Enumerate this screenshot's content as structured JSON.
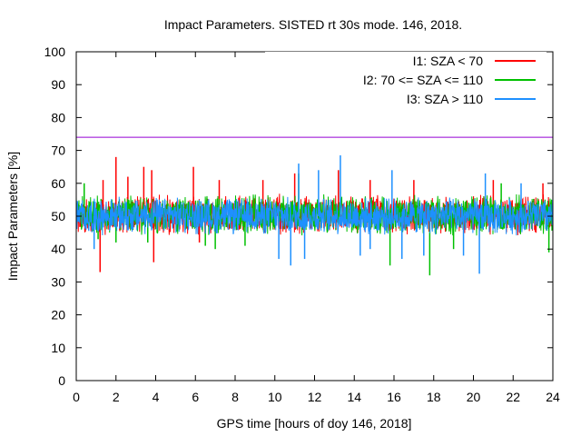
{
  "chart_data": {
    "type": "line",
    "title": "Impact Parameters. SISTED rt 30s mode. 146, 2018.",
    "xlabel": "GPS time [hours of doy 146, 2018]",
    "ylabel": "Impact Parameters [%]",
    "xlim": [
      0,
      24
    ],
    "ylim": [
      0,
      100
    ],
    "x_ticks": [
      0,
      2,
      4,
      6,
      8,
      10,
      12,
      14,
      16,
      18,
      20,
      22,
      24
    ],
    "y_ticks": [
      0,
      10,
      20,
      30,
      40,
      50,
      60,
      70,
      80,
      90,
      100
    ],
    "legend_position": "top-right",
    "reference_line": {
      "y": 74,
      "color": "#9400d3"
    },
    "series": [
      {
        "name": "I1: SZA < 70",
        "color": "#ff0000",
        "mean": 50.5,
        "typical_range": [
          44,
          57
        ],
        "spikes": [
          [
            1.2,
            33
          ],
          [
            1.35,
            61
          ],
          [
            2.0,
            68
          ],
          [
            2.6,
            62
          ],
          [
            3.4,
            65
          ],
          [
            3.6,
            42
          ],
          [
            3.8,
            64
          ],
          [
            3.9,
            36
          ],
          [
            5.9,
            65
          ],
          [
            6.2,
            42
          ],
          [
            7.2,
            61
          ],
          [
            9.4,
            61
          ],
          [
            11.0,
            63
          ],
          [
            13.2,
            64
          ],
          [
            14.8,
            61
          ],
          [
            17.0,
            61
          ],
          [
            21.0,
            61
          ],
          [
            23.5,
            60
          ]
        ]
      },
      {
        "name": "I2: 70 <= SZA <= 110",
        "color": "#00c000",
        "mean": 50.5,
        "typical_range": [
          45,
          58
        ],
        "spikes": [
          [
            0.4,
            60
          ],
          [
            1.1,
            43
          ],
          [
            2.0,
            42
          ],
          [
            3.6,
            42
          ],
          [
            6.5,
            41
          ],
          [
            7.0,
            40
          ],
          [
            8.5,
            41
          ],
          [
            10.8,
            39
          ],
          [
            11.2,
            63
          ],
          [
            15.8,
            35
          ],
          [
            17.8,
            32
          ],
          [
            19.0,
            40
          ],
          [
            21.4,
            60
          ],
          [
            23.8,
            39
          ]
        ]
      },
      {
        "name": "I3: SZA > 110",
        "color": "#1e90ff",
        "mean": 50,
        "typical_range": [
          44,
          56
        ],
        "spikes": [
          [
            0.9,
            40
          ],
          [
            10.2,
            37
          ],
          [
            10.8,
            35
          ],
          [
            11.2,
            66
          ],
          [
            11.5,
            37
          ],
          [
            12.2,
            64
          ],
          [
            13.3,
            68.5
          ],
          [
            14.3,
            38
          ],
          [
            14.8,
            40
          ],
          [
            15.9,
            64
          ],
          [
            16.4,
            37
          ],
          [
            17.5,
            38
          ],
          [
            19.5,
            38
          ],
          [
            20.3,
            32.5
          ],
          [
            20.6,
            63
          ],
          [
            22.4,
            60
          ]
        ]
      }
    ]
  }
}
